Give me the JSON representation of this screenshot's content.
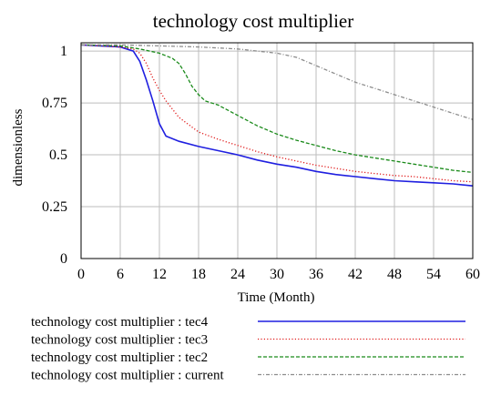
{
  "chart_data": {
    "type": "line",
    "title": "technology cost multiplier",
    "xlabel": "Time (Month)",
    "ylabel": "dimensionless",
    "xlim": [
      0,
      60
    ],
    "ylim": [
      0,
      1.04
    ],
    "grid": true,
    "x_ticks": [
      "0",
      "6",
      "12",
      "18",
      "24",
      "30",
      "36",
      "42",
      "48",
      "54",
      "60"
    ],
    "y_ticks": [
      {
        "value": 0,
        "label": "0"
      },
      {
        "value": 0.25,
        "label": "0.25"
      },
      {
        "value": 0.5,
        "label": "0.5"
      },
      {
        "value": 0.75,
        "label": "0.75"
      },
      {
        "value": 1,
        "label": "1"
      }
    ],
    "legend_position": "bottom",
    "series": [
      {
        "name": "technology cost multiplier : tec4",
        "color": "#1f1fe0",
        "style": "solid",
        "points": [
          [
            0,
            1.03
          ],
          [
            3,
            1.025
          ],
          [
            6,
            1.02
          ],
          [
            8,
            1.0
          ],
          [
            9,
            0.95
          ],
          [
            10,
            0.86
          ],
          [
            11,
            0.76
          ],
          [
            12,
            0.65
          ],
          [
            13,
            0.59
          ],
          [
            15,
            0.565
          ],
          [
            18,
            0.54
          ],
          [
            21,
            0.52
          ],
          [
            24,
            0.5
          ],
          [
            27,
            0.475
          ],
          [
            30,
            0.455
          ],
          [
            33,
            0.44
          ],
          [
            36,
            0.42
          ],
          [
            39,
            0.405
          ],
          [
            42,
            0.395
          ],
          [
            45,
            0.385
          ],
          [
            48,
            0.375
          ],
          [
            51,
            0.37
          ],
          [
            54,
            0.365
          ],
          [
            57,
            0.36
          ],
          [
            60,
            0.35
          ]
        ]
      },
      {
        "name": "technology cost multiplier : tec3",
        "color": "#e01818",
        "style": "dotted",
        "points": [
          [
            0,
            1.03
          ],
          [
            3,
            1.025
          ],
          [
            6,
            1.02
          ],
          [
            8,
            1.01
          ],
          [
            9,
            0.99
          ],
          [
            10,
            0.94
          ],
          [
            11,
            0.87
          ],
          [
            12,
            0.81
          ],
          [
            13,
            0.76
          ],
          [
            15,
            0.68
          ],
          [
            18,
            0.61
          ],
          [
            21,
            0.575
          ],
          [
            24,
            0.545
          ],
          [
            27,
            0.515
          ],
          [
            30,
            0.49
          ],
          [
            33,
            0.47
          ],
          [
            36,
            0.45
          ],
          [
            39,
            0.435
          ],
          [
            42,
            0.42
          ],
          [
            45,
            0.41
          ],
          [
            48,
            0.4
          ],
          [
            51,
            0.395
          ],
          [
            54,
            0.385
          ],
          [
            57,
            0.375
          ],
          [
            60,
            0.37
          ]
        ]
      },
      {
        "name": "technology cost multiplier : tec2",
        "color": "#1a8a1a",
        "style": "dashed",
        "points": [
          [
            0,
            1.03
          ],
          [
            3,
            1.028
          ],
          [
            6,
            1.025
          ],
          [
            9,
            1.01
          ],
          [
            12,
            0.99
          ],
          [
            14,
            0.965
          ],
          [
            15,
            0.94
          ],
          [
            16,
            0.89
          ],
          [
            17,
            0.83
          ],
          [
            18,
            0.79
          ],
          [
            19,
            0.76
          ],
          [
            21,
            0.74
          ],
          [
            24,
            0.69
          ],
          [
            27,
            0.64
          ],
          [
            30,
            0.6
          ],
          [
            33,
            0.57
          ],
          [
            36,
            0.545
          ],
          [
            39,
            0.52
          ],
          [
            42,
            0.5
          ],
          [
            45,
            0.485
          ],
          [
            48,
            0.47
          ],
          [
            51,
            0.455
          ],
          [
            54,
            0.44
          ],
          [
            57,
            0.425
          ],
          [
            60,
            0.415
          ]
        ]
      },
      {
        "name": "technology cost multiplier : current",
        "color": "#8c8c8c",
        "style": "dashdot",
        "points": [
          [
            0,
            1.03
          ],
          [
            6,
            1.03
          ],
          [
            12,
            1.025
          ],
          [
            18,
            1.02
          ],
          [
            24,
            1.01
          ],
          [
            30,
            0.99
          ],
          [
            33,
            0.97
          ],
          [
            36,
            0.93
          ],
          [
            39,
            0.89
          ],
          [
            42,
            0.85
          ],
          [
            45,
            0.82
          ],
          [
            48,
            0.79
          ],
          [
            51,
            0.76
          ],
          [
            54,
            0.73
          ],
          [
            57,
            0.7
          ],
          [
            60,
            0.67
          ]
        ]
      }
    ]
  }
}
